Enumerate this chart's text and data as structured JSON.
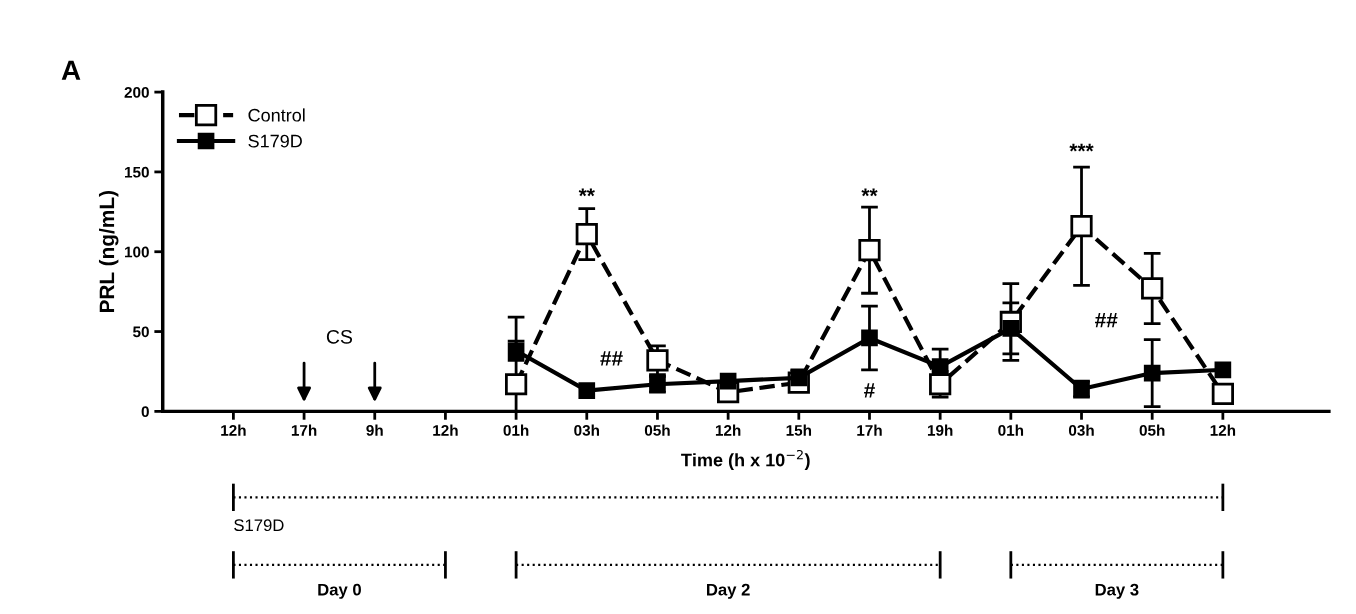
{
  "chart_data": {
    "type": "line",
    "title": "A",
    "xlabel": "Time (h x 10$^{−2}$)",
    "ylabel": "PRL (ng/mL)",
    "categories": [
      "12h",
      "17h",
      "9h",
      "12h",
      "01h",
      "03h",
      "05h",
      "12h",
      "15h",
      "17h",
      "19h",
      "01h",
      "03h",
      "05h",
      "12h"
    ],
    "series": [
      {
        "name": "Control",
        "color": "#000000",
        "marker": "square",
        "line_style": "dashed",
        "values": [
          null,
          null,
          null,
          null,
          17,
          111,
          32,
          12,
          18,
          101,
          17,
          56,
          116,
          77,
          11
        ],
        "errors": [
          null,
          null,
          null,
          null,
          42,
          16,
          9,
          null,
          null,
          27,
          8,
          24,
          37,
          22,
          null
        ]
      },
      {
        "name": "S179D",
        "color": "#000000",
        "marker": "square",
        "line_style": "solid",
        "values": [
          null,
          null,
          null,
          null,
          38,
          13,
          17,
          19,
          21,
          46,
          28,
          52,
          14,
          24,
          26
        ],
        "errors": [
          null,
          null,
          null,
          null,
          6,
          null,
          5,
          null,
          5,
          20,
          11,
          16,
          5,
          21,
          null
        ]
      }
    ],
    "ylim": [
      0,
      200
    ],
    "yticks": [
      0,
      50,
      100,
      150,
      200
    ],
    "annotations": [
      "CS",
      "**",
      "##",
      "**",
      "#",
      "***",
      "##",
      "S179D",
      "Day 0",
      "Day 2",
      "Day 3"
    ],
    "legend": "top left",
    "grid": false
  }
}
